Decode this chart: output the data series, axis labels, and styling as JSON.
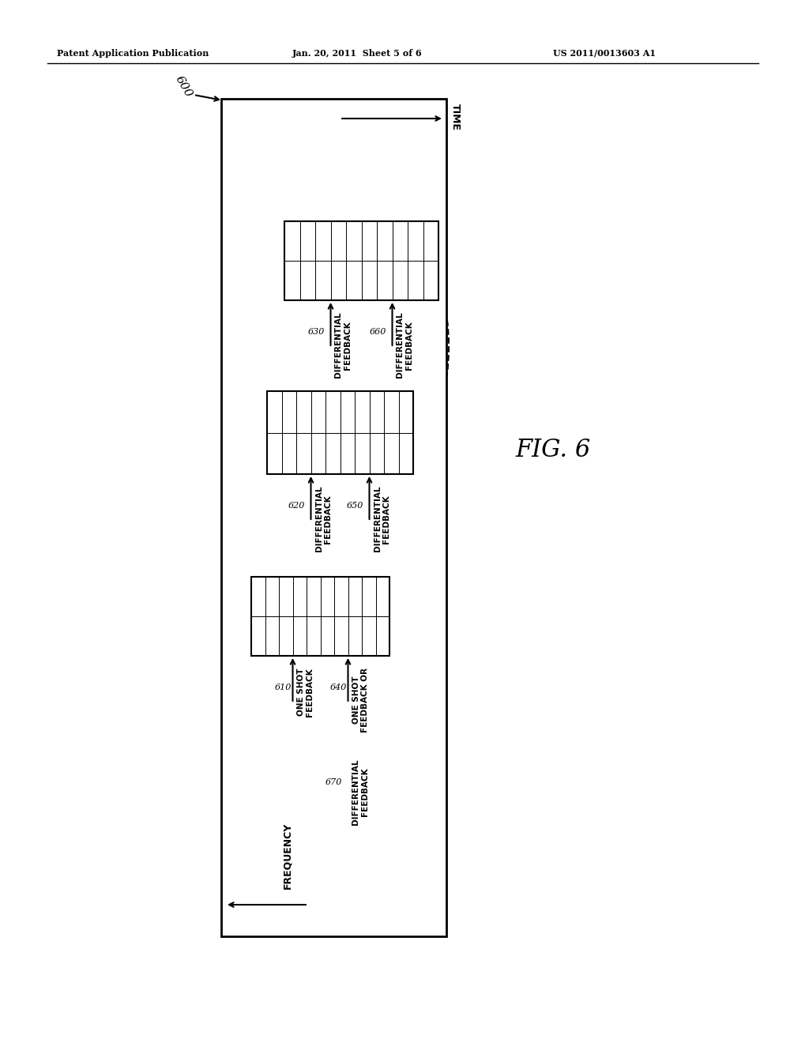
{
  "header_left": "Patent Application Publication",
  "header_mid": "Jan. 20, 2011  Sheet 5 of 6",
  "header_right": "US 2011/0013603 A1",
  "fig_label": "FIG. 6",
  "diagram_label": "600",
  "freq_label": "FREQUENCY",
  "time_label": "TIME",
  "label_610": "610",
  "label_620": "620",
  "label_630": "630",
  "label_640": "640",
  "label_650": "650",
  "label_660": "660",
  "label_670": "670",
  "text_610": "ONE SHOT\nFEEDBACK",
  "text_620": "DIFFERENTIAL\nFEEDBACK",
  "text_630": "DIFFERENTIAL\nFEEDBACK",
  "text_640": "ONE SHOT\nFEEDBACK OR",
  "text_650": "DIFFERENTIAL\nFEEDBACK",
  "text_660": "DIFFERENTIAL\nFEEDBACK",
  "text_670": "DIFFERENTIAL\nFEEDBACK",
  "bg_color": "#ffffff",
  "box_color": "#000000",
  "dashed_color": "#000000",
  "font_color": "#000000"
}
